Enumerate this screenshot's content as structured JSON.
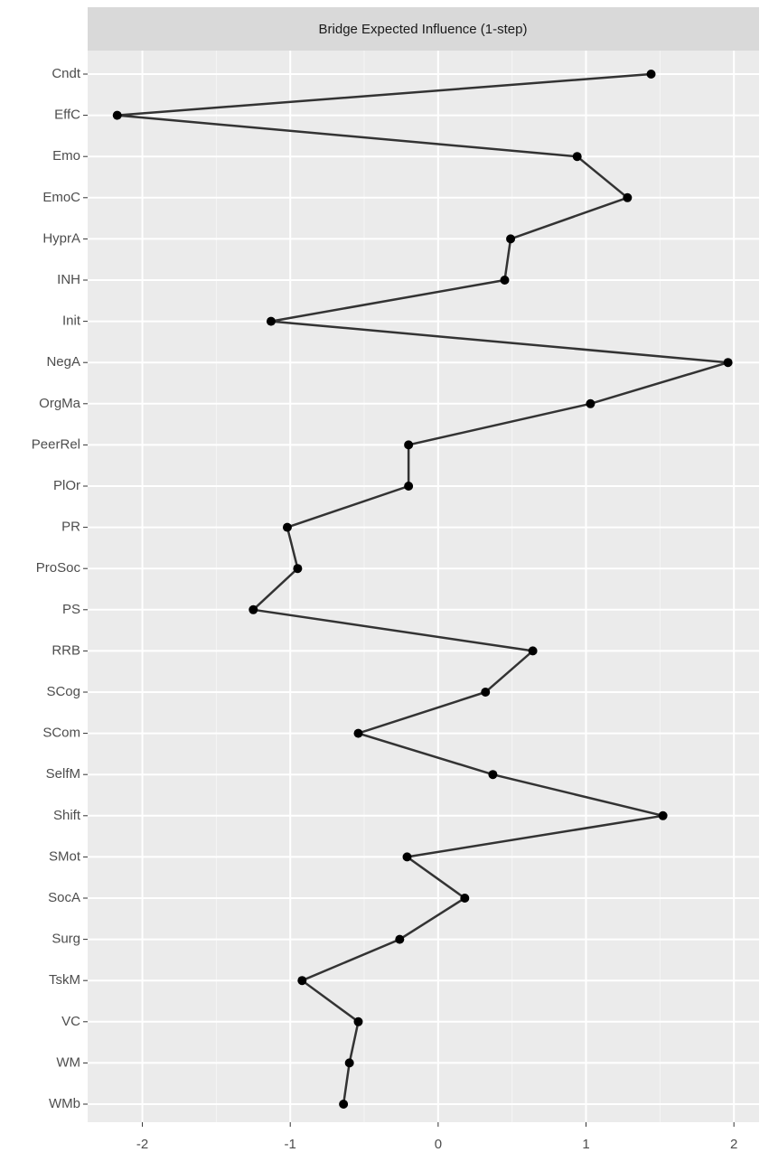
{
  "chart_data": {
    "type": "line",
    "title": "Bridge Expected Influence (1-step)",
    "categories": [
      "Cndt",
      "EffC",
      "Emo",
      "EmoC",
      "HyprA",
      "INH",
      "Init",
      "NegA",
      "OrgMa",
      "PeerRel",
      "PlOr",
      "PR",
      "ProSoc",
      "PS",
      "RRB",
      "SCog",
      "SCom",
      "SelfM",
      "Shift",
      "SMot",
      "SocA",
      "Surg",
      "TskM",
      "VC",
      "WM",
      "WMb"
    ],
    "values": [
      1.44,
      -2.17,
      0.94,
      1.28,
      0.49,
      0.45,
      -1.13,
      1.96,
      1.03,
      -0.2,
      -0.2,
      -1.02,
      -0.95,
      -1.25,
      0.64,
      0.32,
      -0.54,
      0.37,
      1.52,
      -0.21,
      0.18,
      -0.26,
      -0.92,
      -0.54,
      -0.6,
      -0.64
    ],
    "color": "#000000",
    "xlim": [
      -2.37,
      2.17
    ],
    "xticks": [
      -2,
      -1,
      0,
      1,
      2
    ],
    "grid": true
  }
}
